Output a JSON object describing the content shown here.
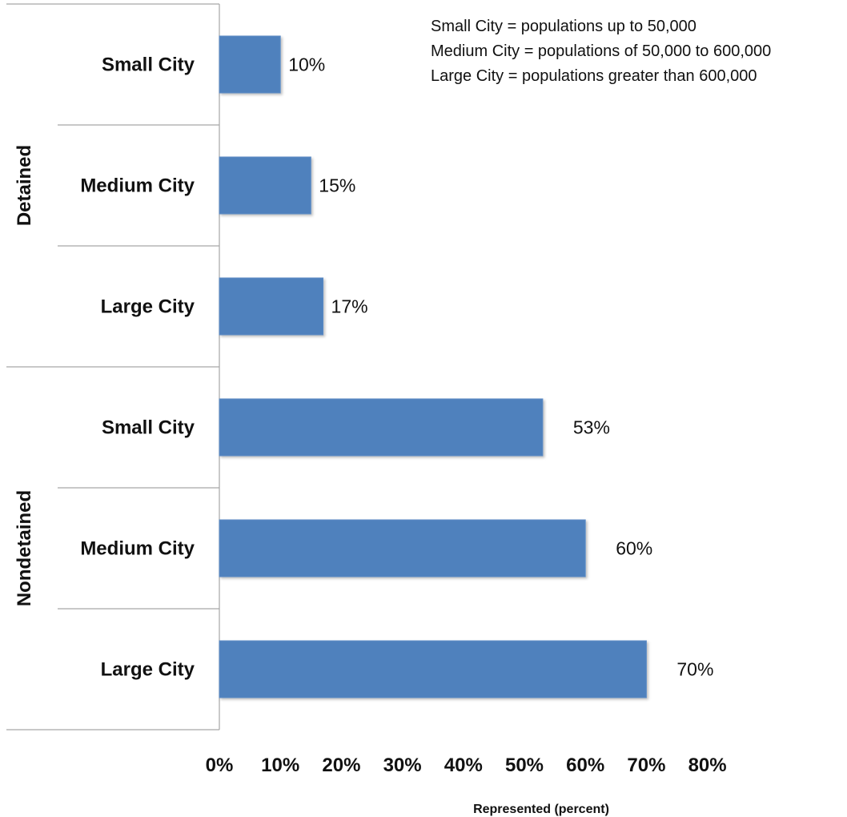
{
  "chart_data": {
    "type": "bar",
    "orientation": "horizontal",
    "groups": [
      {
        "name": "Detained",
        "categories": [
          "Small City",
          "Medium City",
          "Large City"
        ],
        "values": [
          10,
          15,
          17
        ],
        "data_labels": [
          "10%",
          "15%",
          "17%"
        ]
      },
      {
        "name": "Nondetained",
        "categories": [
          "Small City",
          "Medium City",
          "Large City"
        ],
        "values": [
          53,
          60,
          70
        ],
        "data_labels": [
          "53%",
          "60%",
          "70%"
        ]
      }
    ],
    "xlabel": "Represented (percent)",
    "ylabel": "",
    "xlim": [
      0,
      80
    ],
    "xticks": [
      0,
      10,
      20,
      30,
      40,
      50,
      60,
      70,
      80
    ],
    "xtick_labels": [
      "0%",
      "10%",
      "20%",
      "30%",
      "40%",
      "50%",
      "60%",
      "70%",
      "80%"
    ],
    "grid": false,
    "bar_color": "#4f81bd",
    "annotations": [
      "Small City = populations up to 50,000",
      "Medium City = populations of 50,000 to 600,000",
      "Large City = populations greater than 600,000"
    ]
  }
}
